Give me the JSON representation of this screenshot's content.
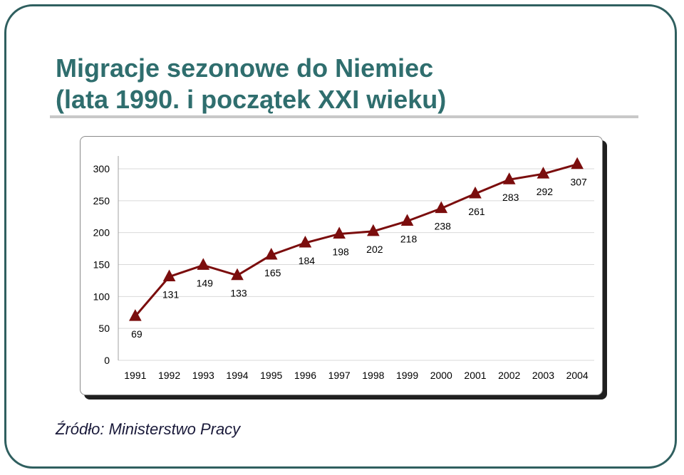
{
  "slide": {
    "title_line1": "Migracje sezonowe do Niemiec",
    "title_line2": "(lata 1990. i początek XXI wieku)",
    "source": "Źródło: Ministerstwo Pracy"
  },
  "colors": {
    "title": "#2f6e6e",
    "frame": "#2f5f5f",
    "series": "#7b0d0d",
    "grid": "#d9d9d9"
  },
  "chart_data": {
    "type": "line",
    "categories": [
      "1991",
      "1992",
      "1993",
      "1994",
      "1995",
      "1996",
      "1997",
      "1998",
      "1999",
      "2000",
      "2001",
      "2002",
      "2003",
      "2004"
    ],
    "series": [
      {
        "values": [
          69,
          131,
          149,
          133,
          165,
          184,
          198,
          202,
          218,
          238,
          261,
          283,
          292,
          307
        ]
      }
    ],
    "y_ticks": [
      0,
      50,
      100,
      150,
      200,
      250,
      300
    ],
    "ylim": [
      0,
      300
    ],
    "marker": "triangle",
    "grid": true,
    "legend": "none",
    "data_labels": true
  }
}
